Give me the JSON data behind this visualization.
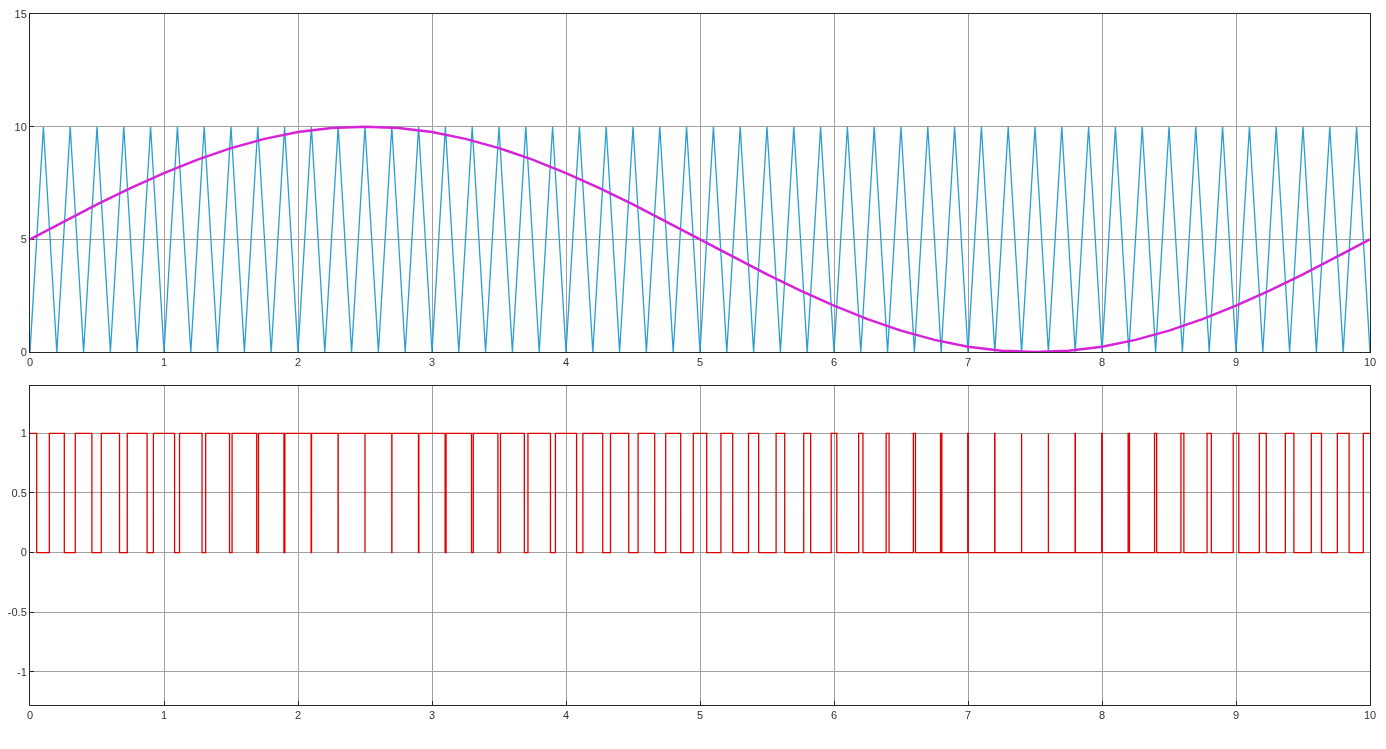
{
  "chart_data": [
    {
      "type": "line",
      "xlim": [
        0,
        10
      ],
      "xticks": [
        0,
        1,
        2,
        3,
        4,
        5,
        6,
        7,
        8,
        9,
        10
      ],
      "ylim": [
        0,
        15
      ],
      "yticks": [
        0,
        5,
        10,
        15
      ],
      "grid": true,
      "series": [
        {
          "color": "#2a9fd0",
          "x": [
            0,
            0.1,
            0.2,
            0.3,
            0.4,
            0.5,
            0.6,
            0.7,
            0.8,
            0.9,
            1,
            1.1,
            1.2,
            1.3,
            1.4,
            1.5,
            1.6,
            1.7,
            1.8,
            1.9,
            2,
            2.1,
            2.2,
            2.3,
            2.4,
            2.5,
            2.6,
            2.7,
            2.8,
            2.9,
            3,
            3.1,
            3.2,
            3.3,
            3.4,
            3.5,
            3.6,
            3.7,
            3.8,
            3.9,
            4,
            4.1,
            4.2,
            4.3,
            4.4,
            4.5,
            4.6,
            4.7,
            4.8,
            4.9,
            5,
            5.1,
            5.2,
            5.3,
            5.4,
            5.5,
            5.6,
            5.7,
            5.8,
            5.9,
            6,
            6.1,
            6.2,
            6.3,
            6.4,
            6.5,
            6.6,
            6.7,
            6.8,
            6.9,
            7,
            7.1,
            7.2,
            7.3,
            7.4,
            7.5,
            7.6,
            7.7,
            7.8,
            7.9,
            8,
            8.1,
            8.2,
            8.3,
            8.4,
            8.5,
            8.6,
            8.7,
            8.8,
            8.9,
            9,
            9.1,
            9.2,
            9.3,
            9.4,
            9.5,
            9.6,
            9.7,
            9.8,
            9.9,
            10
          ],
          "values": [
            0,
            10,
            0,
            10,
            0,
            10,
            0,
            10,
            0,
            10,
            0,
            10,
            0,
            10,
            0,
            10,
            0,
            10,
            0,
            10,
            0,
            10,
            0,
            10,
            0,
            10,
            0,
            10,
            0,
            10,
            0,
            10,
            0,
            10,
            0,
            10,
            0,
            10,
            0,
            10,
            0,
            10,
            0,
            10,
            0,
            10,
            0,
            10,
            0,
            10,
            0,
            10,
            0,
            10,
            0,
            10,
            0,
            10,
            0,
            10,
            0,
            10,
            0,
            10,
            0,
            10,
            0,
            10,
            0,
            10,
            0,
            10,
            0,
            10,
            0,
            10,
            0,
            10,
            0,
            10,
            0,
            10,
            0,
            10,
            0,
            10,
            0,
            10,
            0,
            10,
            0,
            10,
            0,
            10,
            0,
            10,
            0,
            10,
            0,
            10,
            0
          ]
        },
        {
          "color": "#d622d8",
          "x": [
            0,
            0.25,
            0.5,
            0.75,
            1,
            1.25,
            1.5,
            1.75,
            2,
            2.25,
            2.5,
            2.75,
            3,
            3.25,
            3.5,
            3.75,
            4,
            4.25,
            4.5,
            4.75,
            5,
            5.25,
            5.5,
            5.75,
            6,
            6.25,
            6.5,
            6.75,
            7,
            7.25,
            7.5,
            7.75,
            8,
            8.25,
            8.5,
            8.75,
            9,
            9.25,
            9.5,
            9.75,
            10
          ],
          "values": [
            5,
            5.78,
            6.55,
            7.27,
            7.94,
            8.54,
            9.05,
            9.46,
            9.76,
            9.94,
            10,
            9.94,
            9.76,
            9.46,
            9.05,
            8.54,
            7.94,
            7.27,
            6.55,
            5.78,
            5,
            4.22,
            3.45,
            2.73,
            2.06,
            1.46,
            0.95,
            0.54,
            0.24,
            0.06,
            0,
            0.06,
            0.24,
            0.54,
            0.95,
            1.46,
            2.06,
            2.73,
            3.45,
            4.22,
            5
          ]
        }
      ]
    },
    {
      "type": "step",
      "xlim": [
        0,
        10
      ],
      "xticks": [
        0,
        1,
        2,
        3,
        4,
        5,
        6,
        7,
        8,
        9,
        10
      ],
      "ylim": [
        -1.28,
        1.4
      ],
      "yticks": [
        -1,
        -0.5,
        0,
        0.5,
        1
      ],
      "grid": true,
      "series": [
        {
          "color": "#e00000",
          "x": [
            0,
            0.05,
            0.144,
            0.256,
            0.338,
            0.462,
            0.532,
            0.668,
            0.726,
            0.874,
            0.921,
            1.079,
            1.116,
            1.284,
            1.311,
            1.489,
            1.508,
            1.692,
            1.705,
            1.895,
            1.902,
            2.098,
            2.101,
            2.299,
            2.3,
            2.5,
            2.5,
            2.7,
            2.701,
            2.899,
            2.902,
            3.098,
            3.105,
            3.295,
            3.308,
            3.492,
            3.511,
            3.689,
            3.716,
            3.884,
            3.921,
            4.079,
            4.126,
            4.274,
            4.332,
            4.468,
            4.538,
            4.662,
            4.744,
            4.856,
            4.95,
            5.05,
            5.156,
            5.244,
            5.362,
            5.438,
            5.568,
            5.632,
            5.774,
            5.826,
            5.979,
            6.021,
            6.184,
            6.216,
            6.389,
            6.411,
            6.592,
            6.608,
            6.795,
            6.805,
            6.998,
            7.002,
            7.199,
            7.201,
            7.4,
            7.4,
            7.6,
            7.6,
            7.799,
            7.801,
            7.998,
            8.002,
            8.195,
            8.205,
            8.392,
            8.408,
            8.589,
            8.611,
            8.784,
            8.816,
            8.979,
            9.021,
            9.174,
            9.226,
            9.368,
            9.432,
            9.562,
            9.638,
            9.756,
            9.844,
            9.95,
            10
          ],
          "values": [
            1,
            0,
            1,
            0,
            1,
            0,
            1,
            0,
            1,
            0,
            1,
            0,
            1,
            0,
            1,
            0,
            1,
            0,
            1,
            0,
            1,
            0,
            1,
            0,
            1,
            0,
            1,
            0,
            1,
            0,
            1,
            0,
            1,
            0,
            1,
            0,
            1,
            0,
            1,
            0,
            1,
            0,
            1,
            0,
            1,
            0,
            1,
            0,
            1,
            0,
            1,
            0,
            1,
            0,
            1,
            0,
            1,
            0,
            1,
            0,
            1,
            0,
            1,
            0,
            1,
            0,
            1,
            0,
            1,
            0,
            1,
            0,
            1,
            0,
            1,
            0,
            1,
            0,
            1,
            0,
            1,
            0,
            1,
            0,
            1,
            0,
            1,
            0,
            1,
            0,
            1,
            0,
            1,
            0,
            1,
            0,
            1,
            0,
            1,
            0,
            1,
            1
          ]
        }
      ]
    }
  ]
}
